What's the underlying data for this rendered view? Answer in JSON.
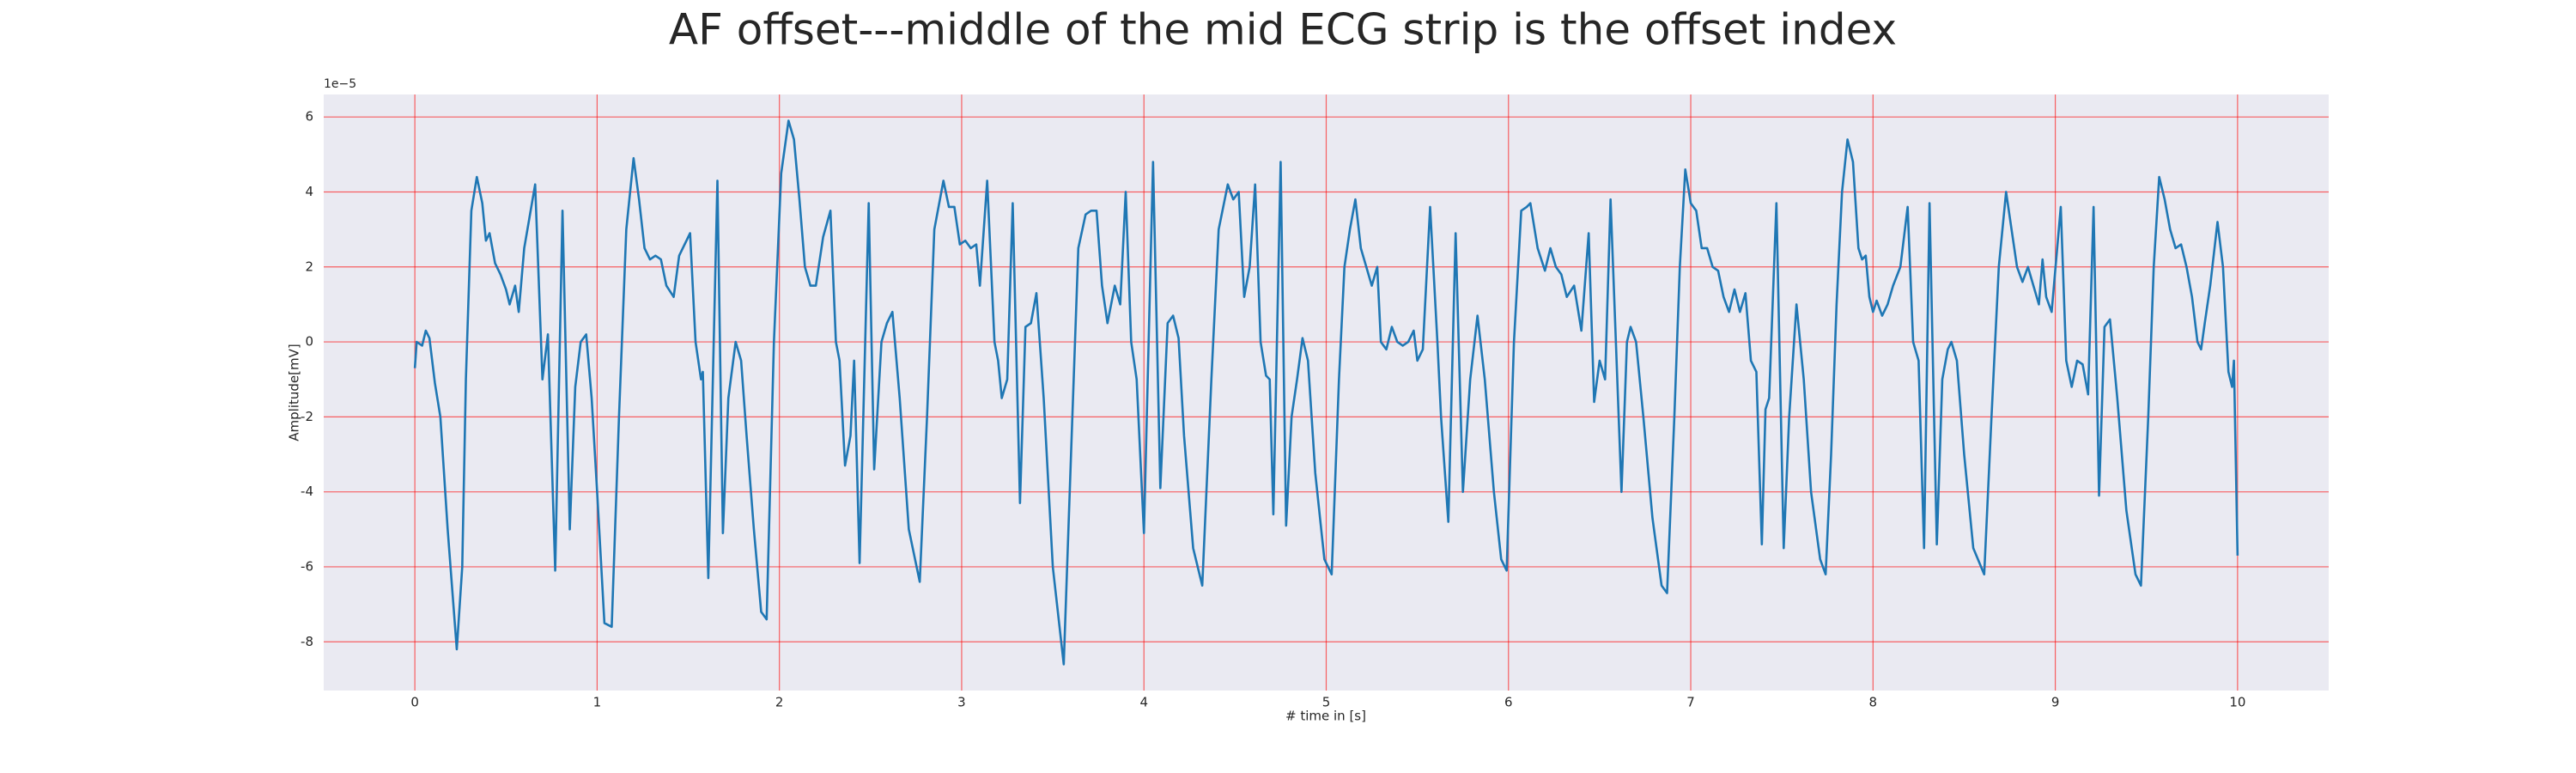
{
  "chart_data": {
    "type": "line",
    "title": "AF offset---middle of the mid ECG strip is the offset index",
    "xlabel": "# time in [s]",
    "ylabel": "Amplitude[mV]",
    "y_offset_label": "1e−5",
    "color": "#1f77b4",
    "grid": true,
    "grid_color": "#ff0000",
    "background": "#eaeaf2",
    "xlim": [
      -0.5,
      10.5
    ],
    "ylim": [
      -9.3,
      6.6
    ],
    "xticks": [
      0,
      1,
      2,
      3,
      4,
      5,
      6,
      7,
      8,
      9,
      10
    ],
    "yticks": [
      -8,
      -6,
      -4,
      -2,
      0,
      2,
      4,
      6
    ],
    "x": [
      0,
      0.01,
      0.04,
      0.06,
      0.08,
      0.11,
      0.14,
      0.18,
      0.23,
      0.26,
      0.28,
      0.31,
      0.34,
      0.37,
      0.39,
      0.41,
      0.44,
      0.47,
      0.5,
      0.52,
      0.55,
      0.57,
      0.6,
      0.66,
      0.7,
      0.73,
      0.77,
      0.81,
      0.85,
      0.88,
      0.91,
      0.94,
      0.97,
      1.0,
      1.04,
      1.08,
      1.12,
      1.16,
      1.2,
      1.23,
      1.26,
      1.29,
      1.32,
      1.35,
      1.38,
      1.42,
      1.45,
      1.51,
      1.54,
      1.57,
      1.58,
      1.61,
      1.66,
      1.69,
      1.72,
      1.76,
      1.79,
      1.82,
      1.86,
      1.9,
      1.93,
      1.97,
      2.01,
      2.05,
      2.08,
      2.11,
      2.14,
      2.17,
      2.2,
      2.24,
      2.28,
      2.31,
      2.33,
      2.36,
      2.39,
      2.41,
      2.44,
      2.49,
      2.52,
      2.56,
      2.59,
      2.62,
      2.66,
      2.71,
      2.77,
      2.81,
      2.85,
      2.9,
      2.93,
      2.96,
      2.99,
      3.02,
      3.05,
      3.08,
      3.1,
      3.14,
      3.18,
      3.2,
      3.22,
      3.25,
      3.28,
      3.32,
      3.35,
      3.38,
      3.41,
      3.45,
      3.5,
      3.56,
      3.6,
      3.64,
      3.68,
      3.71,
      3.74,
      3.77,
      3.8,
      3.84,
      3.87,
      3.9,
      3.93,
      3.96,
      4.0,
      4.05,
      4.09,
      4.13,
      4.16,
      4.19,
      4.22,
      4.27,
      4.32,
      4.37,
      4.41,
      4.46,
      4.49,
      4.52,
      4.55,
      4.58,
      4.61,
      4.64,
      4.67,
      4.69,
      4.71,
      4.75,
      4.78,
      4.81,
      4.84,
      4.87,
      4.9,
      4.94,
      4.99,
      5.03,
      5.07,
      5.1,
      5.13,
      5.16,
      5.19,
      5.22,
      5.25,
      5.28,
      5.3,
      5.33,
      5.36,
      5.39,
      5.42,
      5.45,
      5.48,
      5.5,
      5.53,
      5.57,
      5.61,
      5.63,
      5.67,
      5.71,
      5.75,
      5.79,
      5.83,
      5.87,
      5.92,
      5.96,
      5.99,
      6.03,
      6.07,
      6.1,
      6.12,
      6.16,
      6.2,
      6.23,
      6.26,
      6.29,
      6.32,
      6.36,
      6.4,
      6.44,
      6.47,
      6.5,
      6.53,
      6.56,
      6.62,
      6.65,
      6.67,
      6.7,
      6.74,
      6.79,
      6.84,
      6.87,
      6.91,
      6.94,
      6.97,
      7.0,
      7.03,
      7.06,
      7.09,
      7.12,
      7.15,
      7.18,
      7.21,
      7.24,
      7.27,
      7.3,
      7.33,
      7.36,
      7.39,
      7.41,
      7.43,
      7.47,
      7.51,
      7.54,
      7.58,
      7.62,
      7.66,
      7.71,
      7.74,
      7.77,
      7.8,
      7.83,
      7.86,
      7.89,
      7.92,
      7.94,
      7.96,
      7.98,
      8.0,
      8.02,
      8.05,
      8.08,
      8.11,
      8.15,
      8.19,
      8.22,
      8.25,
      8.28,
      8.31,
      8.35,
      8.38,
      8.41,
      8.43,
      8.46,
      8.5,
      8.55,
      8.61,
      8.65,
      8.69,
      8.73,
      8.76,
      8.79,
      8.82,
      8.85,
      8.88,
      8.91,
      8.93,
      8.95,
      8.98,
      9.03,
      9.06,
      9.09,
      9.12,
      9.15,
      9.18,
      9.21,
      9.24,
      9.27,
      9.3,
      9.34,
      9.39,
      9.44,
      9.47,
      9.51,
      9.54,
      9.57,
      9.6,
      9.63,
      9.66,
      9.69,
      9.72,
      9.75,
      9.78,
      9.8,
      9.82,
      9.85,
      9.89,
      9.92,
      9.95,
      9.97,
      9.98,
      10.0
    ],
    "values": [
      -0.7,
      0,
      -0.1,
      0.3,
      0.1,
      -1.1,
      -2,
      -5,
      -8.2,
      -6,
      -1,
      3.5,
      4.4,
      3.7,
      2.7,
      2.9,
      2.1,
      1.8,
      1.4,
      1,
      1.5,
      0.8,
      2.5,
      4.2,
      -1,
      0.2,
      -6.1,
      3.5,
      -5,
      -1.2,
      0,
      0.2,
      -1.5,
      -4,
      -7.5,
      -7.6,
      -2,
      3,
      4.9,
      3.8,
      2.5,
      2.2,
      2.3,
      2.2,
      1.5,
      1.2,
      2.3,
      2.9,
      0,
      -1,
      -0.8,
      -6.3,
      4.3,
      -5.1,
      -1.5,
      0,
      -0.5,
      -2.5,
      -5,
      -7.2,
      -7.4,
      0,
      4.5,
      5.9,
      5.4,
      3.8,
      2,
      1.5,
      1.5,
      2.8,
      3.5,
      0,
      -0.5,
      -3.3,
      -2.5,
      -0.5,
      -5.9,
      3.7,
      -3.4,
      0,
      0.5,
      0.8,
      -1.5,
      -5,
      -6.4,
      -2,
      3,
      4.3,
      3.6,
      3.6,
      2.6,
      2.7,
      2.5,
      2.6,
      1.5,
      4.3,
      0,
      -0.5,
      -1.5,
      -1,
      3.7,
      -4.3,
      0.4,
      0.5,
      1.3,
      -1.5,
      -6,
      -8.6,
      -3,
      2.5,
      3.4,
      3.5,
      3.5,
      1.5,
      0.5,
      1.5,
      1,
      4,
      0,
      -1,
      -5.1,
      4.8,
      -3.9,
      0.5,
      0.7,
      0.1,
      -2.5,
      -5.5,
      -6.5,
      -1,
      3,
      4.2,
      3.8,
      4,
      1.2,
      2,
      4.2,
      0,
      -0.9,
      -1,
      -4.6,
      4.8,
      -4.9,
      -2,
      -1,
      0.1,
      -0.5,
      -3.5,
      -5.8,
      -6.2,
      -1,
      2,
      3,
      3.8,
      2.5,
      2,
      1.5,
      2,
      0,
      -0.2,
      0.4,
      0,
      -0.1,
      0,
      0.3,
      -0.5,
      -0.2,
      3.6,
      0,
      -2,
      -4.8,
      2.9,
      -4,
      -1,
      0.7,
      -1,
      -4,
      -5.8,
      -6.1,
      0,
      3.5,
      3.6,
      3.7,
      2.5,
      1.9,
      2.5,
      2,
      1.8,
      1.2,
      1.5,
      0.3,
      2.9,
      -1.6,
      -0.5,
      -1,
      3.8,
      -4,
      0,
      0.4,
      0,
      -2,
      -4.7,
      -6.5,
      -6.7,
      -2,
      2,
      4.6,
      3.7,
      3.5,
      2.5,
      2.5,
      2,
      1.9,
      1.2,
      0.8,
      1.4,
      0.8,
      1.3,
      -0.5,
      -0.8,
      -5.4,
      -1.8,
      -1.5,
      3.7,
      -5.5,
      -2,
      1,
      -1,
      -4,
      -5.8,
      -6.2,
      -3,
      1,
      4,
      5.4,
      4.8,
      2.5,
      2.2,
      2.3,
      1.2,
      0.8,
      1.1,
      0.7,
      1,
      1.5,
      2,
      3.6,
      0,
      -0.5,
      -5.5,
      3.7,
      -5.4,
      -1,
      -0.2,
      0,
      -0.5,
      -3,
      -5.5,
      -6.2,
      -2,
      2,
      4,
      3,
      2,
      1.6,
      2,
      1.5,
      1,
      2.2,
      1.2,
      0.8,
      3.6,
      -0.5,
      -1.2,
      -0.5,
      -0.6,
      -1.4,
      3.6,
      -4.1,
      0.4,
      0.6,
      -1.5,
      -4.5,
      -6.2,
      -6.5,
      -2,
      2,
      4.4,
      3.8,
      3,
      2.5,
      2.6,
      2,
      1.2,
      0,
      -0.2,
      0.5,
      1.5,
      3.2,
      2,
      -0.8,
      -1.2,
      -0.5,
      -5.7
    ]
  }
}
